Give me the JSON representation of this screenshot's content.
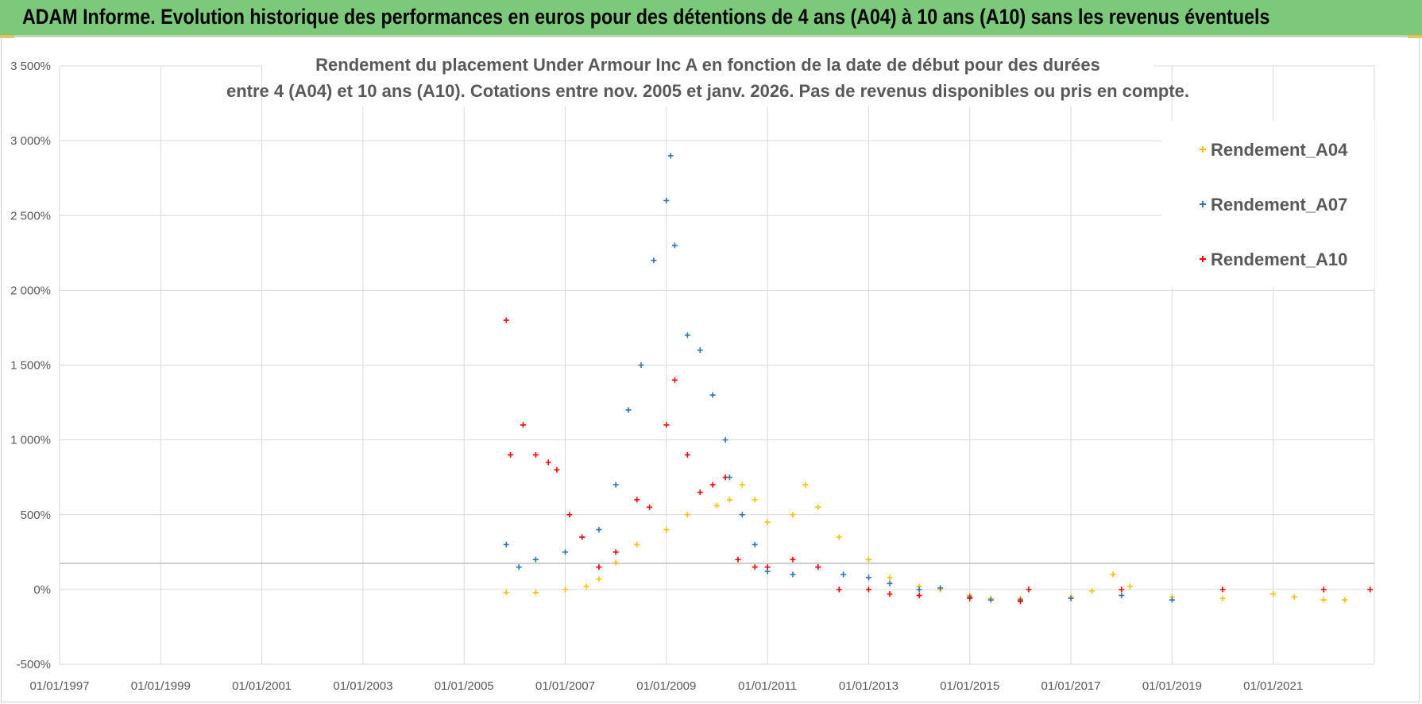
{
  "banner": {
    "title": "ADAM Informe. Evolution historique des performances en euros pour des détentions de 4 ans (A04) à 10 ans (A10) sans les revenus éventuels",
    "color": "#7dc97b"
  },
  "chart_data": {
    "type": "scatter",
    "title_line1": "Rendement du placement Under Armour Inc A en fonction de la date de début pour des durées",
    "title_line2": "entre 4 (A04) et 10 ans (A10).  Cotations entre nov. 2005 et janv. 2026. Pas de revenus disponibles ou pris en compte.",
    "xlabel": "",
    "ylabel": "",
    "x_ticks": [
      "01/01/1997",
      "01/01/1999",
      "01/01/2001",
      "01/01/2003",
      "01/01/2005",
      "01/01/2007",
      "01/01/2009",
      "01/01/2011",
      "01/01/2013",
      "01/01/2015",
      "01/01/2017",
      "01/01/2019",
      "01/01/2021"
    ],
    "xlim": [
      "01/01/1997",
      "01/01/2023"
    ],
    "y_ticks": [
      "-500%",
      "0%",
      "500%",
      "1 000%",
      "1 500%",
      "2 000%",
      "2 500%",
      "3 000%",
      "3 500%"
    ],
    "ylim": [
      -500,
      3500
    ],
    "grid": true,
    "legend_position": "right",
    "marker": "+",
    "series": [
      {
        "name": "Rendement_A04",
        "color": "#ffc000",
        "points": [
          [
            "11/2005",
            -20
          ],
          [
            "06/2006",
            -20
          ],
          [
            "01/2007",
            0
          ],
          [
            "06/2007",
            20
          ],
          [
            "09/2007",
            70
          ],
          [
            "01/2008",
            180
          ],
          [
            "06/2008",
            300
          ],
          [
            "01/2009",
            400
          ],
          [
            "06/2009",
            500
          ],
          [
            "01/2010",
            560
          ],
          [
            "04/2010",
            600
          ],
          [
            "07/2010",
            700
          ],
          [
            "10/2010",
            600
          ],
          [
            "01/2011",
            450
          ],
          [
            "07/2011",
            500
          ],
          [
            "10/2011",
            700
          ],
          [
            "01/2012",
            550
          ],
          [
            "06/2012",
            350
          ],
          [
            "01/2013",
            200
          ],
          [
            "06/2013",
            80
          ],
          [
            "01/2014",
            20
          ],
          [
            "06/2014",
            0
          ],
          [
            "01/2015",
            -40
          ],
          [
            "06/2015",
            -60
          ],
          [
            "01/2016",
            -60
          ],
          [
            "01/2017",
            -50
          ],
          [
            "06/2017",
            -10
          ],
          [
            "11/2017",
            100
          ],
          [
            "03/2018",
            20
          ],
          [
            "01/2019",
            -50
          ],
          [
            "01/2020",
            -60
          ],
          [
            "01/2021",
            -30
          ],
          [
            "06/2021",
            -50
          ],
          [
            "01/2022",
            -70
          ],
          [
            "06/2022",
            -70
          ]
        ]
      },
      {
        "name": "Rendement_A07",
        "color": "#2e75b6",
        "points": [
          [
            "11/2005",
            300
          ],
          [
            "02/2006",
            150
          ],
          [
            "06/2006",
            200
          ],
          [
            "01/2007",
            250
          ],
          [
            "05/2007",
            350
          ],
          [
            "09/2007",
            400
          ],
          [
            "01/2008",
            700
          ],
          [
            "04/2008",
            1200
          ],
          [
            "07/2008",
            1500
          ],
          [
            "10/2008",
            2200
          ],
          [
            "01/2009",
            2600
          ],
          [
            "02/2009",
            2900
          ],
          [
            "03/2009",
            2300
          ],
          [
            "06/2009",
            1700
          ],
          [
            "09/2009",
            1600
          ],
          [
            "12/2009",
            1300
          ],
          [
            "03/2010",
            1000
          ],
          [
            "04/2010",
            750
          ],
          [
            "07/2010",
            500
          ],
          [
            "10/2010",
            300
          ],
          [
            "01/2011",
            120
          ],
          [
            "07/2011",
            100
          ],
          [
            "01/2012",
            150
          ],
          [
            "07/2012",
            100
          ],
          [
            "01/2013",
            80
          ],
          [
            "06/2013",
            40
          ],
          [
            "01/2014",
            0
          ],
          [
            "06/2014",
            10
          ],
          [
            "01/2015",
            -50
          ],
          [
            "06/2015",
            -70
          ],
          [
            "01/2016",
            -70
          ],
          [
            "01/2017",
            -60
          ],
          [
            "01/2018",
            -40
          ],
          [
            "01/2019",
            -70
          ]
        ]
      },
      {
        "name": "Rendement_A10",
        "color": "#ff0000",
        "points": [
          [
            "11/2005",
            1800
          ],
          [
            "12/2005",
            900
          ],
          [
            "03/2006",
            1100
          ],
          [
            "06/2006",
            900
          ],
          [
            "09/2006",
            850
          ],
          [
            "11/2006",
            800
          ],
          [
            "02/2007",
            500
          ],
          [
            "05/2007",
            350
          ],
          [
            "09/2007",
            150
          ],
          [
            "01/2008",
            250
          ],
          [
            "06/2008",
            600
          ],
          [
            "09/2008",
            550
          ],
          [
            "01/2009",
            1100
          ],
          [
            "03/2009",
            1400
          ],
          [
            "06/2009",
            900
          ],
          [
            "09/2009",
            650
          ],
          [
            "12/2009",
            700
          ],
          [
            "03/2010",
            750
          ],
          [
            "06/2010",
            200
          ],
          [
            "10/2010",
            150
          ],
          [
            "01/2011",
            150
          ],
          [
            "07/2011",
            200
          ],
          [
            "01/2012",
            150
          ],
          [
            "06/2012",
            0
          ],
          [
            "01/2013",
            0
          ],
          [
            "06/2013",
            -30
          ],
          [
            "01/2014",
            -40
          ],
          [
            "01/2015",
            -60
          ],
          [
            "01/2016",
            -80
          ],
          [
            "03/2016",
            0
          ],
          [
            "01/2018",
            0
          ],
          [
            "01/2020",
            0
          ],
          [
            "01/2022",
            0
          ],
          [
            "12/2022",
            0
          ]
        ]
      }
    ]
  }
}
